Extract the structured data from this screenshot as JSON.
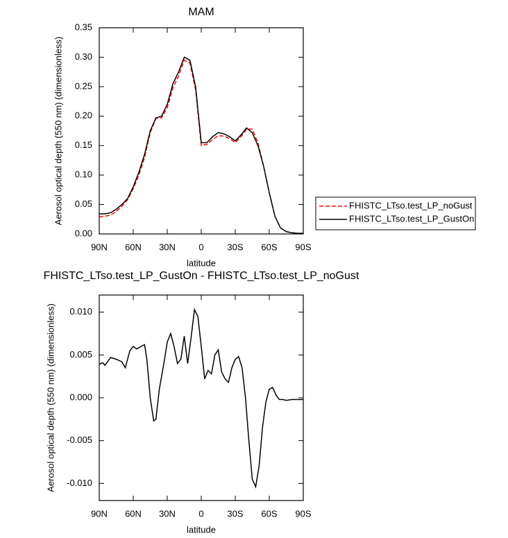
{
  "chart_data": [
    {
      "type": "line",
      "title": "MAM",
      "x_label": "latitude",
      "y_label": "Aerosol optical depth (550 nm) (dimensionless)",
      "x": [
        90,
        85,
        80,
        75,
        70,
        65,
        60,
        55,
        50,
        45,
        40,
        35,
        30,
        25,
        20,
        15,
        10,
        5,
        0,
        -5,
        -10,
        -15,
        -20,
        -25,
        -30,
        -35,
        -40,
        -45,
        -50,
        -55,
        -60,
        -65,
        -70,
        -75,
        -80,
        -85,
        -90
      ],
      "series": [
        {
          "name": "FHISTC_LTso.test_LP_noGust",
          "color": "#ff0000",
          "dash": true,
          "values": [
            0.029,
            0.03,
            0.032,
            0.038,
            0.047,
            0.058,
            0.077,
            0.1,
            0.13,
            0.172,
            0.196,
            0.197,
            0.214,
            0.248,
            0.268,
            0.295,
            0.29,
            0.245,
            0.15,
            0.152,
            0.16,
            0.167,
            0.166,
            0.162,
            0.155,
            0.165,
            0.178,
            0.178,
            0.155,
            0.115,
            0.07,
            0.03,
            0.01,
            0.004,
            0.002,
            0.001,
            0.001
          ]
        },
        {
          "name": "FHISTC_LTso.test_LP_GustOn",
          "color": "#000000",
          "dash": false,
          "values": [
            0.034,
            0.034,
            0.036,
            0.042,
            0.05,
            0.06,
            0.08,
            0.105,
            0.135,
            0.175,
            0.197,
            0.2,
            0.22,
            0.255,
            0.275,
            0.3,
            0.295,
            0.25,
            0.155,
            0.155,
            0.165,
            0.172,
            0.17,
            0.165,
            0.158,
            0.168,
            0.18,
            0.172,
            0.15,
            0.115,
            0.07,
            0.03,
            0.01,
            0.004,
            0.002,
            0.001,
            0.001
          ]
        }
      ],
      "xlim": [
        90,
        -90
      ],
      "xticks": [
        {
          "value": 90,
          "label": "90N"
        },
        {
          "value": 60,
          "label": "60N"
        },
        {
          "value": 30,
          "label": "30N"
        },
        0,
        {
          "value": -30,
          "label": "30S"
        },
        {
          "value": -60,
          "label": "60S"
        },
        {
          "value": -90,
          "label": "90S"
        }
      ],
      "ylim": [
        0,
        0.35
      ],
      "yticks": [
        {
          "value": 0,
          "label": "0.00"
        },
        0.05,
        {
          "value": 0.1,
          "label": "0.10"
        },
        0.15,
        {
          "value": 0.2,
          "label": "0.20"
        },
        0.25,
        {
          "value": 0.3,
          "label": "0.30"
        },
        0.35
      ]
    },
    {
      "type": "line",
      "title": "FHISTC_LTso.test_LP_GustOn - FHISTC_LTso.test_LP_noGust",
      "x_label": "latitude",
      "y_label": "Aerosol optical depth (550 nm) (dimensionless)",
      "x": [
        90,
        87,
        85,
        80,
        75,
        70,
        67,
        63,
        60,
        57,
        53,
        50,
        48,
        45,
        42,
        40,
        37,
        33,
        30,
        27,
        24,
        21,
        18,
        15,
        12,
        9,
        6,
        3,
        0,
        -3,
        -6,
        -9,
        -12,
        -15,
        -18,
        -21,
        -24,
        -27,
        -30,
        -33,
        -36,
        -39,
        -42,
        -45,
        -48,
        -51,
        -54,
        -57,
        -60,
        -63,
        -66,
        -69,
        -72,
        -75,
        -80,
        -85,
        -90
      ],
      "values": [
        0.0039,
        0.0041,
        0.0038,
        0.0047,
        0.0045,
        0.0042,
        0.0035,
        0.0055,
        0.006,
        0.0057,
        0.006,
        0.0062,
        0.0045,
        0.0,
        -0.0027,
        -0.0025,
        0.001,
        0.004,
        0.0065,
        0.0075,
        0.006,
        0.004,
        0.0045,
        0.0072,
        0.004,
        0.007,
        0.0103,
        0.0095,
        0.006,
        0.0022,
        0.0032,
        0.0028,
        0.005,
        0.0056,
        0.003,
        0.0022,
        0.0018,
        0.0035,
        0.0045,
        0.0048,
        0.0035,
        0.0,
        -0.005,
        -0.0095,
        -0.0104,
        -0.008,
        -0.0035,
        -0.0005,
        0.001,
        0.0012,
        0.0003,
        -0.0002,
        -0.0002,
        -0.0003,
        -0.0002,
        -0.0002,
        -0.0002
      ],
      "color": "#000000",
      "xlim": [
        90,
        -90
      ],
      "xticks": [
        {
          "value": 90,
          "label": "90N"
        },
        {
          "value": 60,
          "label": "60N"
        },
        {
          "value": 30,
          "label": "30N"
        },
        0,
        {
          "value": -30,
          "label": "30S"
        },
        {
          "value": -60,
          "label": "60S"
        },
        {
          "value": -90,
          "label": "90S"
        }
      ],
      "ylim": [
        -0.012,
        0.012
      ],
      "yticks": [
        {
          "value": -0.01,
          "label": "-0.010"
        },
        {
          "value": -0.005,
          "label": "-0.005"
        },
        {
          "value": 0,
          "label": "0.000"
        },
        {
          "value": 0.005,
          "label": "0.005"
        },
        {
          "value": 0.01,
          "label": "0.010"
        }
      ]
    }
  ]
}
